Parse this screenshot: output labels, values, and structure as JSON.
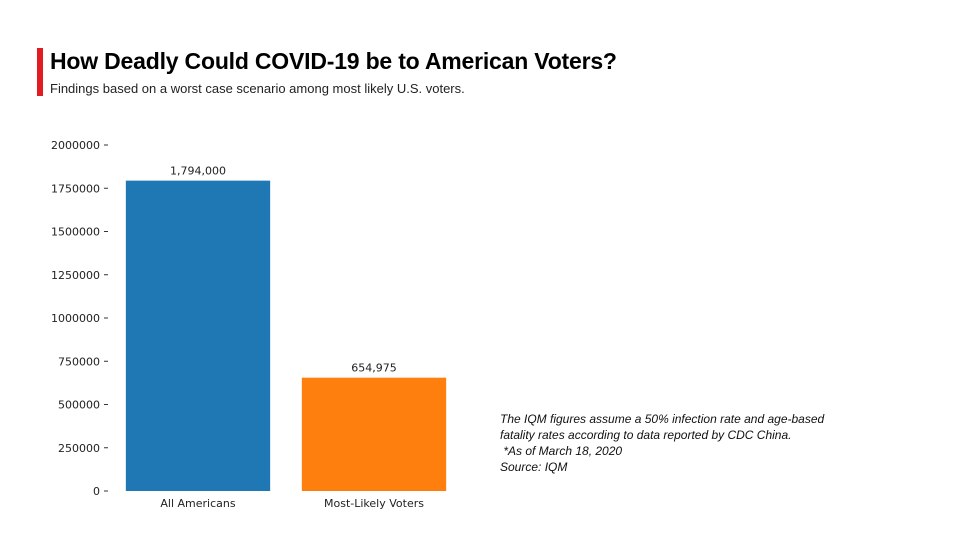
{
  "header": {
    "title": "How Deadly Could COVID-19 be to American Voters?",
    "subtitle": "Findings based on a worst case scenario among most likely U.S. voters."
  },
  "colors": {
    "accent": "#e01b22"
  },
  "note": {
    "line1": "The IQM figures assume a 50% infection rate and age-based",
    "line2": "fatality rates according to data reported by CDC China.",
    "line3": " *As of March 18, 2020",
    "line4": "Source: IQM"
  },
  "chart_data": {
    "type": "bar",
    "categories": [
      "All Americans",
      "Most-Likely Voters"
    ],
    "values": [
      1794000,
      654975
    ],
    "data_labels": [
      "1,794,000",
      "654,975"
    ],
    "colors": [
      "#1f77b4",
      "#ff7f0e"
    ],
    "ylim": [
      0,
      2000000
    ],
    "yticks": [
      0,
      250000,
      500000,
      750000,
      1000000,
      1250000,
      1500000,
      1750000,
      2000000
    ],
    "grid": false
  }
}
